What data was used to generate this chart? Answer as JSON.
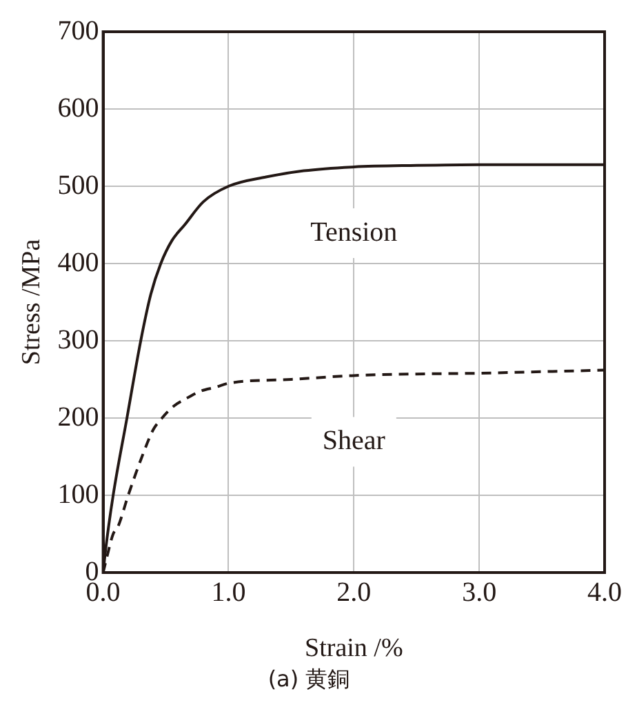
{
  "chart_data": {
    "type": "line",
    "title": "(a) 黄銅",
    "xlabel": "Strain /%",
    "ylabel": "Stress /MPa",
    "xlim": [
      0,
      4
    ],
    "xticks": [
      {
        "value": 0,
        "label": "0.0"
      },
      {
        "value": 1,
        "label": "1.0"
      },
      {
        "value": 2,
        "label": "2.0"
      },
      {
        "value": 3,
        "label": "3.0"
      },
      {
        "value": 4,
        "label": "4.0"
      }
    ],
    "ylim": [
      0,
      700
    ],
    "yticks": [
      0,
      100,
      200,
      300,
      400,
      500,
      600,
      700
    ],
    "grid": true,
    "legend": false,
    "marker": "none",
    "series": [
      {
        "name": "Tension",
        "color": "#231815",
        "line_style": "solid",
        "x": [
          0,
          0.02,
          0.08,
          0.19,
          0.3,
          0.38,
          0.46,
          0.55,
          0.65,
          0.8,
          1.0,
          1.3,
          1.6,
          2.0,
          2.5,
          3.0,
          3.5,
          4.0
        ],
        "values": [
          0,
          30,
          100,
          200,
          300,
          360,
          400,
          430,
          450,
          480,
          500,
          512,
          520,
          525,
          527,
          528,
          528,
          528
        ]
      },
      {
        "name": "Shear",
        "color": "#231815",
        "line_style": "dashed",
        "x": [
          0,
          0.03,
          0.08,
          0.12,
          0.2,
          0.31,
          0.4,
          0.47,
          0.56,
          0.66,
          0.78,
          0.9,
          1.0,
          1.5,
          2.0,
          2.5,
          3.0,
          3.5,
          4.0
        ],
        "values": [
          0,
          20,
          50,
          60,
          100,
          150,
          185,
          200,
          215,
          225,
          235,
          240,
          245,
          250,
          255,
          257,
          258,
          260,
          262
        ]
      }
    ]
  }
}
